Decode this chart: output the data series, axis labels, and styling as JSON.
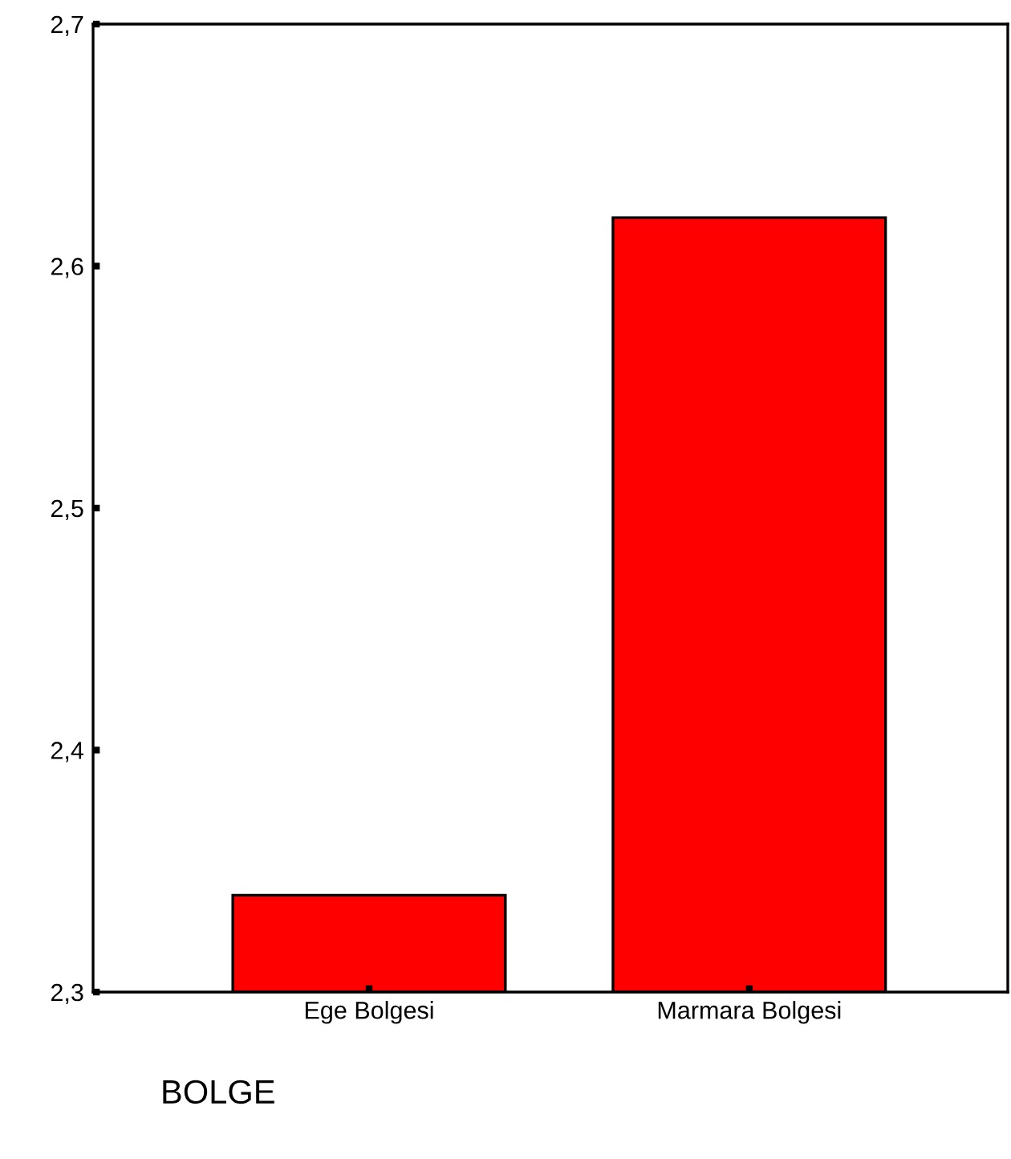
{
  "chart_data": {
    "type": "bar",
    "xlabel": "BOLGE",
    "categories": [
      "Ege Bolgesi",
      "Marmara Bolgesi"
    ],
    "values": [
      2.34,
      2.62
    ],
    "color": "#ff0000",
    "ylim": [
      2.3,
      2.7
    ],
    "yticks": [
      {
        "value": 2.3,
        "label": "2,3"
      },
      {
        "value": 2.4,
        "label": "2,4"
      },
      {
        "value": 2.5,
        "label": "2,5"
      },
      {
        "value": 2.6,
        "label": "2,6"
      },
      {
        "value": 2.7,
        "label": "2,7"
      }
    ],
    "grid": false,
    "legend": false
  }
}
